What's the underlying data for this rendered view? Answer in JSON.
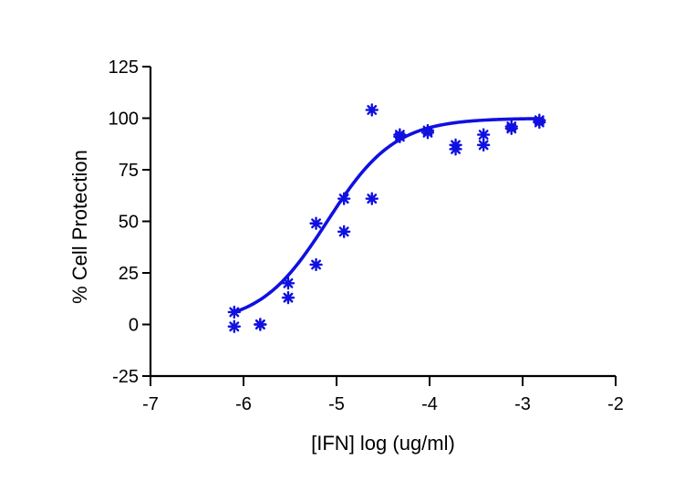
{
  "chart_data": {
    "type": "scatter",
    "title": "",
    "xlabel": "[IFN] log (ug/ml)",
    "ylabel": "% Cell Protection",
    "xlim": [
      -7,
      -2
    ],
    "ylim": [
      -25,
      125
    ],
    "xticks": [
      -7,
      -6,
      -5,
      -4,
      -3,
      -2
    ],
    "yticks": [
      -25,
      0,
      25,
      50,
      75,
      100,
      125
    ],
    "xtick_labels": [
      "-7",
      "-6",
      "-5",
      "-4",
      "-3",
      "-2"
    ],
    "ytick_labels": [
      "-25",
      "0",
      "25",
      "50",
      "75",
      "100",
      "125"
    ],
    "grid": false,
    "legend": "none",
    "color": "#1010e0",
    "series": [
      {
        "marker": "asterisk",
        "x": [
          -6.1,
          -6.1,
          -5.82,
          -5.82,
          -5.52,
          -5.52,
          -5.22,
          -5.22,
          -4.92,
          -4.92,
          -4.62,
          -4.62,
          -4.32,
          -4.32,
          -4.02,
          -4.02,
          -3.72,
          -3.72,
          -3.42,
          -3.42,
          -3.12,
          -3.12,
          -2.82,
          -2.82
        ],
        "y": [
          6,
          -1,
          0,
          0,
          20,
          13,
          49,
          29,
          61,
          45,
          104,
          61,
          92,
          91,
          94,
          93,
          87,
          85,
          92,
          87,
          96,
          95,
          99,
          98
        ]
      },
      {
        "type": "line",
        "fit": "sigmoidal dose-response",
        "bottom": 0,
        "top": 100,
        "log_ec50": -5.1,
        "hill_slope": 1.2,
        "x_range": [
          -6.1,
          -2.82
        ]
      }
    ]
  }
}
